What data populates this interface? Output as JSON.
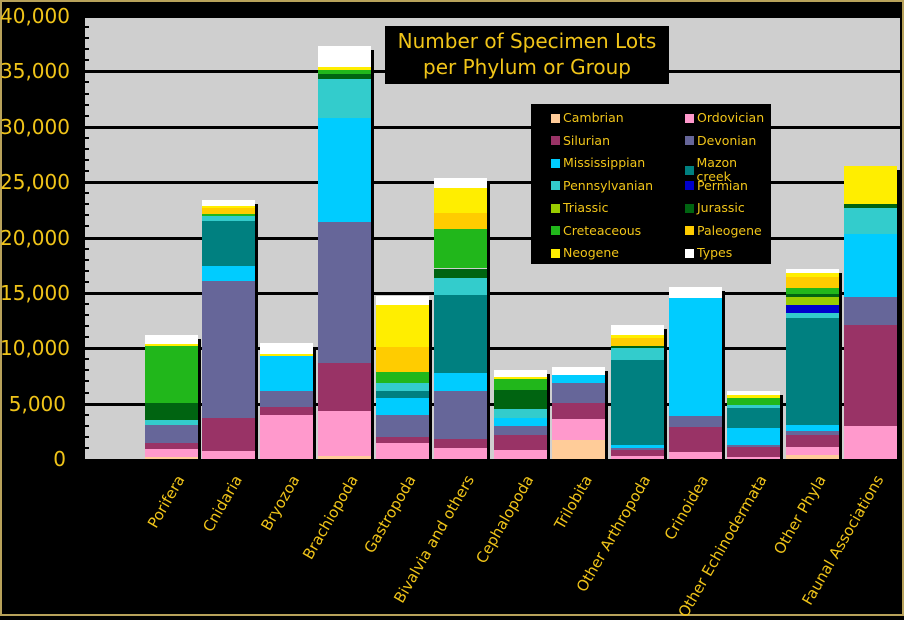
{
  "chart_data": {
    "type": "bar",
    "stacked": true,
    "title": "Number of Specimen Lots per Phylum or Group",
    "title_lines": [
      "Number of Specimen Lots",
      "per Phylum or Group"
    ],
    "xlabel": "",
    "ylabel": "",
    "ylim": [
      0,
      40000
    ],
    "yticks": [
      "0",
      "5,000",
      "10,000",
      "15,000",
      "20,000",
      "25,000",
      "30,000",
      "35,000",
      "40,000"
    ],
    "grid": true,
    "legend_position": "upper right (inside)",
    "categories": [
      "Porifera",
      "Cnidaria",
      "Bryozoa",
      "Brachiopoda",
      "Gastropoda",
      "Bivalvia and others",
      "Cephalopoda",
      "Trilobita",
      "Other Arthropoda",
      "Crinoidea",
      "Other Echinodermata",
      "Other Phyla",
      "Faunal Associations"
    ],
    "series": [
      {
        "name": "Cambrian",
        "color": "#ffcc99",
        "values": [
          200,
          0,
          0,
          300,
          0,
          0,
          0,
          1700,
          0,
          0,
          0,
          400,
          0
        ]
      },
      {
        "name": "Ordovician",
        "color": "#ff99cc",
        "values": [
          700,
          700,
          4000,
          4000,
          1400,
          1000,
          800,
          1900,
          300,
          600,
          200,
          700,
          3000
        ]
      },
      {
        "name": "Silurian",
        "color": "#993366",
        "values": [
          500,
          3000,
          700,
          4400,
          600,
          800,
          1400,
          1500,
          500,
          2300,
          900,
          1100,
          9100
        ]
      },
      {
        "name": "Devonian",
        "color": "#666699",
        "values": [
          1700,
          12400,
          1400,
          12700,
          2000,
          4300,
          800,
          1800,
          200,
          1000,
          200,
          300,
          2500
        ]
      },
      {
        "name": "Mississippian",
        "color": "#00ccff",
        "values": [
          0,
          1300,
          3200,
          9400,
          1500,
          1700,
          700,
          700,
          300,
          10600,
          1500,
          600,
          5700
        ]
      },
      {
        "name": "Mazon creek",
        "color": "#008080",
        "values": [
          0,
          4100,
          0,
          0,
          600,
          7000,
          0,
          0,
          7600,
          0,
          1800,
          9600,
          0
        ]
      },
      {
        "name": "Pennsylvanian",
        "color": "#33cccc",
        "values": [
          400,
          400,
          0,
          3500,
          800,
          1500,
          800,
          0,
          1100,
          0,
          300,
          500,
          2400
        ]
      },
      {
        "name": "Permian",
        "color": "#0000cc",
        "values": [
          0,
          0,
          0,
          0,
          0,
          0,
          0,
          0,
          0,
          0,
          0,
          700,
          0
        ]
      },
      {
        "name": "Triassic",
        "color": "#99cc00",
        "values": [
          0,
          0,
          0,
          0,
          0,
          0,
          0,
          0,
          0,
          0,
          0,
          700,
          0
        ]
      },
      {
        "name": "Jurassic",
        "color": "#006411",
        "values": [
          1600,
          0,
          0,
          500,
          0,
          900,
          1700,
          0,
          200,
          0,
          0,
          300,
          300
        ]
      },
      {
        "name": "Creteaceous",
        "color": "#21b71b",
        "values": [
          5100,
          200,
          0,
          300,
          1000,
          3600,
          1000,
          0,
          0,
          0,
          600,
          500,
          0
        ]
      },
      {
        "name": "Paleogene",
        "color": "#ffcc00",
        "values": [
          0,
          600,
          0,
          0,
          2200,
          1400,
          0,
          0,
          700,
          0,
          0,
          1000,
          0
        ]
      },
      {
        "name": "Neogene",
        "color": "#ffee00",
        "values": [
          200,
          100,
          200,
          300,
          3800,
          2300,
          200,
          0,
          300,
          0,
          300,
          400,
          3500
        ]
      },
      {
        "name": "Types",
        "color": "#ffffff",
        "values": [
          800,
          600,
          1000,
          1900,
          800,
          900,
          600,
          700,
          900,
          1000,
          300,
          400,
          0
        ]
      }
    ]
  },
  "axis": {
    "y_labels": [
      "0",
      "5,000",
      "10,000",
      "15,000",
      "20,000",
      "25,000",
      "30,000",
      "35,000",
      "40,000"
    ]
  },
  "title": {
    "line1": "Number of Specimen Lots",
    "line2": "per Phylum or Group"
  },
  "legend": [
    {
      "label": "Cambrian",
      "color": "#ffcc99"
    },
    {
      "label": "Ordovician",
      "color": "#ff99cc"
    },
    {
      "label": "Silurian",
      "color": "#993366"
    },
    {
      "label": "Devonian",
      "color": "#666699"
    },
    {
      "label": "Mississippian",
      "color": "#00ccff"
    },
    {
      "label": "Mazon creek",
      "color": "#008080"
    },
    {
      "label": "Pennsylvanian",
      "color": "#33cccc"
    },
    {
      "label": "Permian",
      "color": "#0000cc"
    },
    {
      "label": "Triassic",
      "color": "#99cc00"
    },
    {
      "label": "Jurassic",
      "color": "#006411"
    },
    {
      "label": "Creteaceous",
      "color": "#21b71b"
    },
    {
      "label": "Paleogene",
      "color": "#ffcc00"
    },
    {
      "label": "Neogene",
      "color": "#ffee00"
    },
    {
      "label": "Types",
      "color": "#ffffff"
    }
  ]
}
